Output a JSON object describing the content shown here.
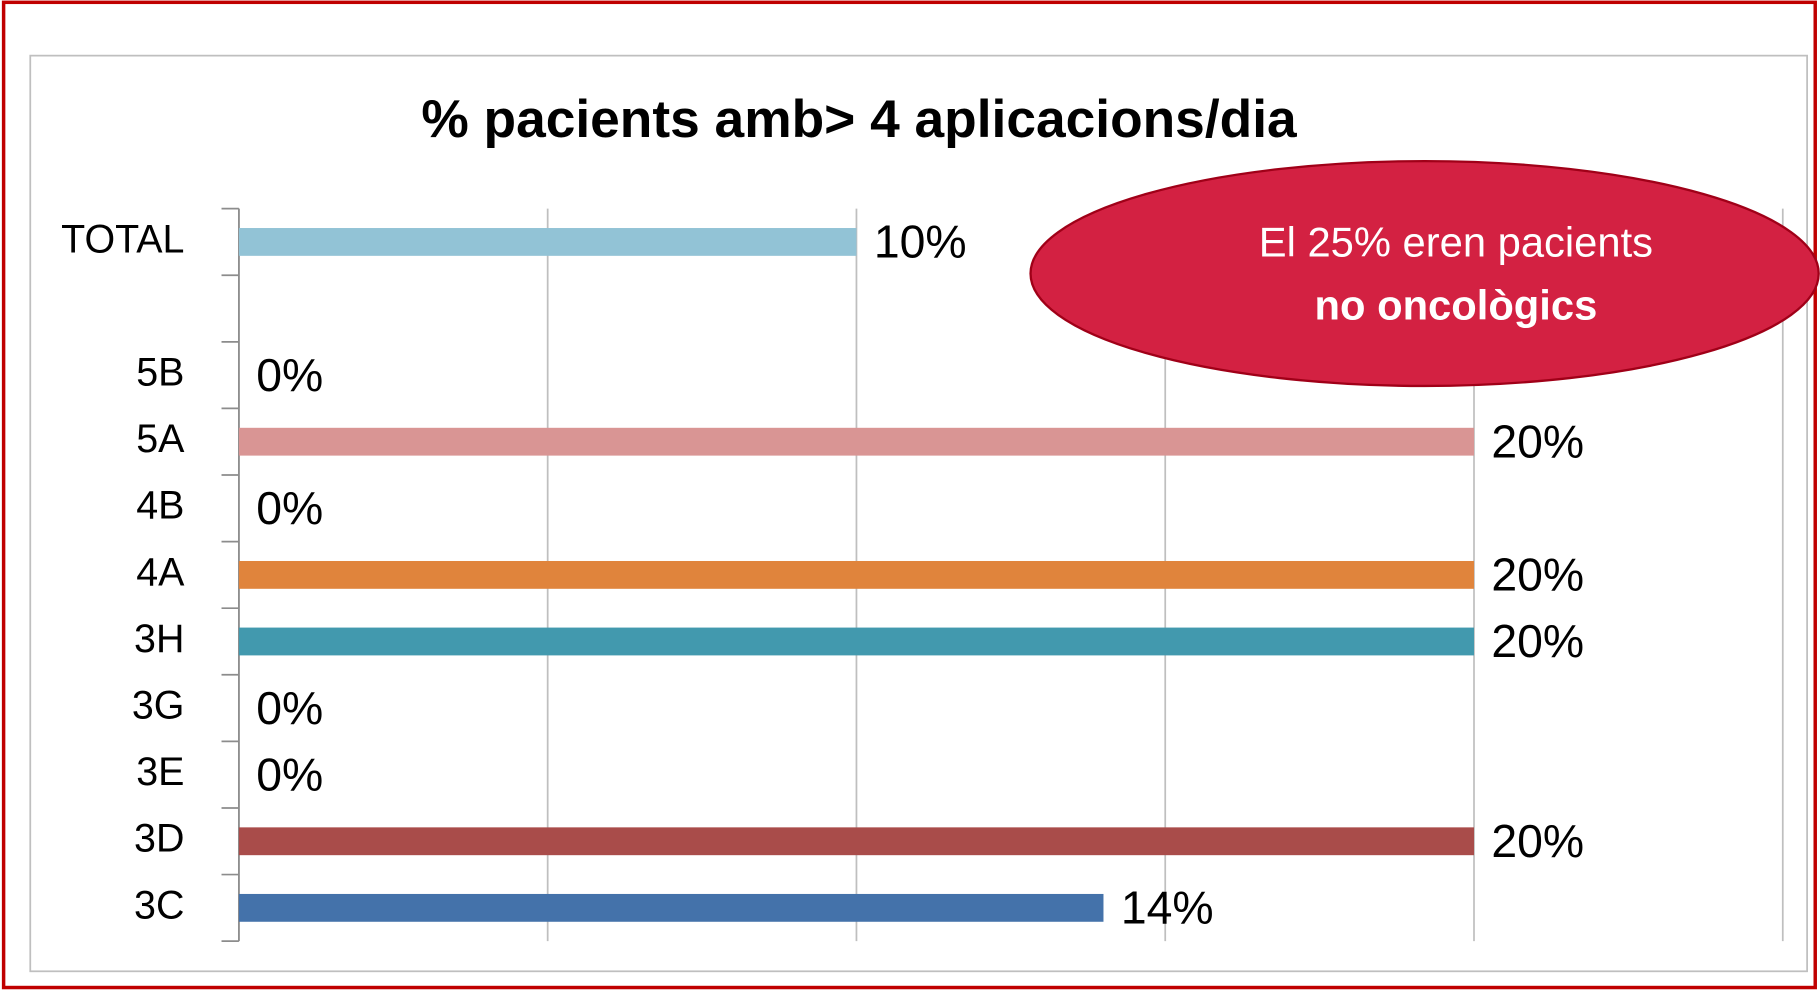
{
  "chart_data": {
    "type": "bar",
    "orientation": "horizontal",
    "title": "% pacients amb> 4 aplicacions/dia",
    "categories": [
      "TOTAL",
      null,
      "5B",
      "5A",
      "4B",
      "4A",
      "3H",
      "3G",
      "3E",
      "3D",
      "3C"
    ],
    "values": [
      10,
      null,
      0,
      20,
      0,
      20,
      20,
      0,
      0,
      20,
      14
    ],
    "value_labels": [
      "10%",
      null,
      "0%",
      "20%",
      "0%",
      "20%",
      "20%",
      "0%",
      "0%",
      "20%",
      "14%"
    ],
    "colors": [
      "#92c3d6",
      null,
      null,
      "#d99594",
      null,
      "#e0843c",
      "#4299ae",
      null,
      null,
      "#a94c4a",
      "#4472aa"
    ],
    "xlim": [
      0,
      25
    ],
    "xticks": [
      0,
      5,
      10,
      15,
      20,
      25
    ],
    "grid": true,
    "annotation": {
      "lines": [
        "El 25% eren pacients",
        "no oncològics"
      ],
      "color": "#d32142"
    }
  }
}
